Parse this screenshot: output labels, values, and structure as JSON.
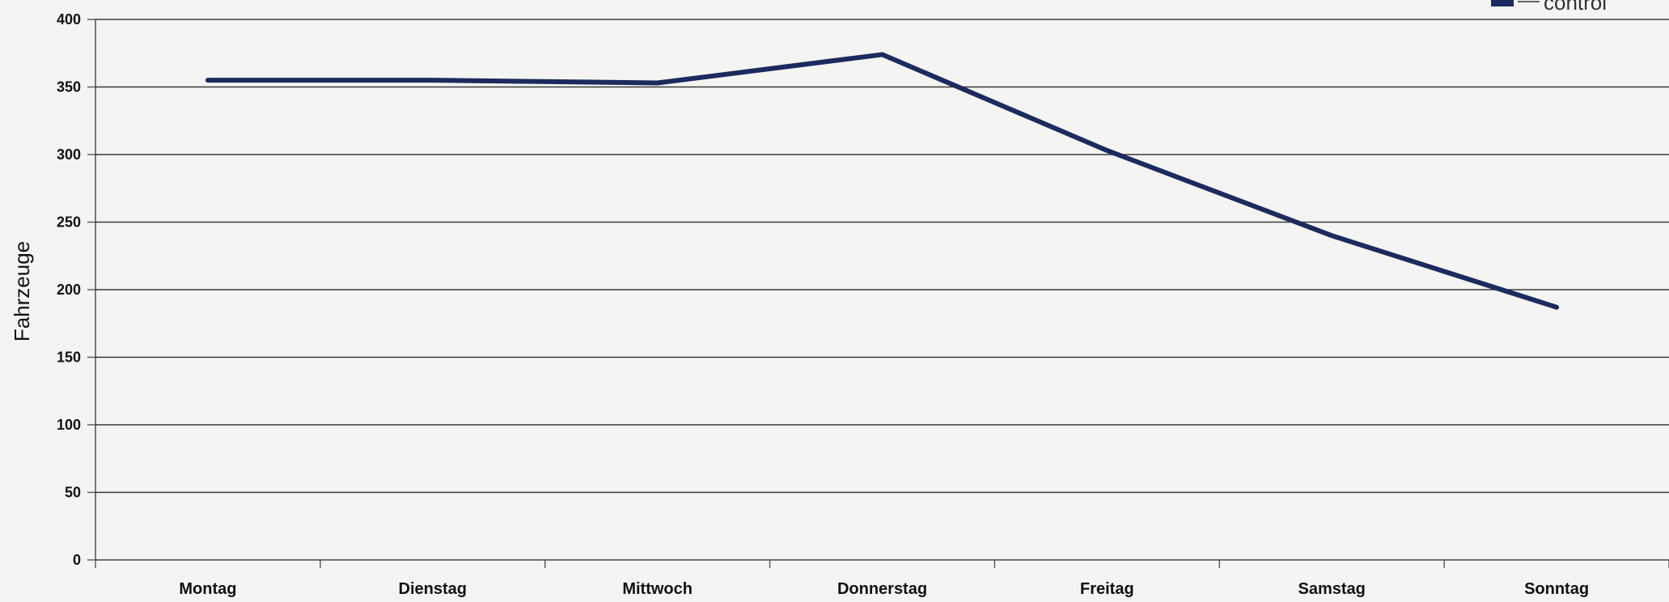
{
  "chart_data": {
    "type": "line",
    "categories": [
      "Montag",
      "Dienstag",
      "Mittwoch",
      "Donnerstag",
      "Freitag",
      "Samstag",
      "Sonntag"
    ],
    "series": [
      {
        "name": "control",
        "values": [
          355,
          355,
          353,
          374,
          303,
          240,
          187
        ]
      }
    ],
    "title": "",
    "xlabel": "",
    "ylabel": "Fahrzeuge",
    "ylim": [
      0,
      400
    ],
    "yticks": [
      0,
      50,
      100,
      150,
      200,
      250,
      300,
      350,
      400
    ],
    "grid": true,
    "legend_position": "top-right",
    "colors": {
      "series": "#1c2b5e",
      "grid": "#3a3a3a",
      "background": "#f4f4f2"
    }
  }
}
